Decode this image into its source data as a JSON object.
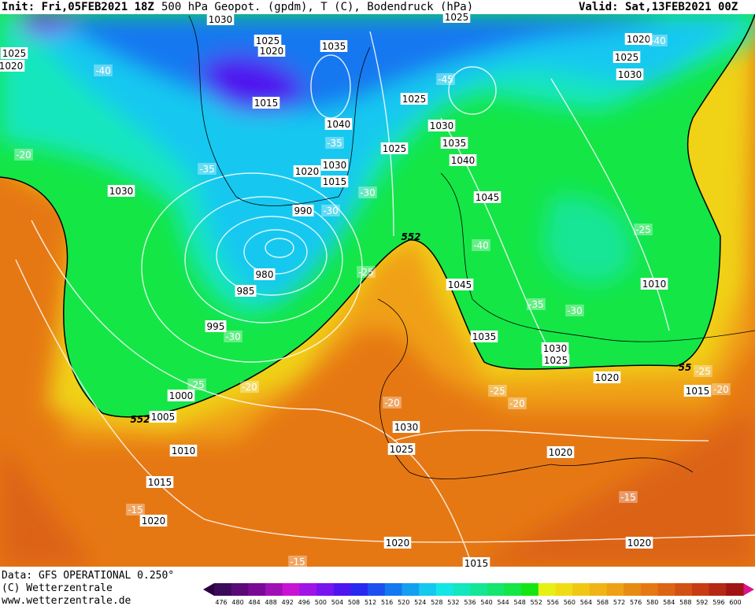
{
  "header": {
    "init": "Init: Fri,05FEB2021 18Z",
    "fields": "500 hPa Geopot. (gpdm), T (C), Bodendruck (hPa)",
    "valid": "Valid: Sat,13FEB2021 00Z"
  },
  "footer": {
    "data": "Data: GFS OPERATIONAL 0.250°",
    "copyright": "(C) Wetterzentrale",
    "url": "www.wetterzentrale.de"
  },
  "colorbar": {
    "ticks": [
      476,
      480,
      484,
      488,
      492,
      496,
      500,
      504,
      508,
      512,
      516,
      520,
      524,
      528,
      532,
      536,
      540,
      544,
      548,
      552,
      556,
      560,
      564,
      568,
      572,
      576,
      580,
      584,
      588,
      592,
      596,
      600
    ],
    "colors": [
      "#3c0a5a",
      "#5a0a78",
      "#7a0a96",
      "#a010b4",
      "#c814d2",
      "#a014e6",
      "#7814f0",
      "#5014f0",
      "#2828f0",
      "#1e50f0",
      "#1478f0",
      "#14a0f0",
      "#14c8f0",
      "#14e6e6",
      "#14e6be",
      "#14e696",
      "#14e66e",
      "#14e646",
      "#14e614",
      "#e6f014",
      "#f0dc14",
      "#f0c814",
      "#f0b414",
      "#f0a014",
      "#e68c14",
      "#e67814",
      "#dc6414",
      "#d25014",
      "#c83c14",
      "#b42814",
      "#a01414"
    ],
    "under_color": "#2a0040",
    "over_color": "#dc148c"
  },
  "pressure_labels": [
    1030,
    1025,
    1020,
    1035,
    1015,
    1040,
    1030,
    1020,
    1015,
    990,
    980,
    985,
    995,
    1000,
    1005,
    1010,
    1015,
    1020,
    1020,
    1015,
    1020,
    1020,
    1025,
    1030,
    1020,
    1015,
    1025,
    1030,
    1035,
    1045,
    1045,
    1040,
    1035,
    1030,
    1025,
    1025,
    1025,
    1020,
    1025,
    1030,
    1010,
    1030,
    1025,
    1020
  ],
  "temperature_labels": [
    -35,
    -30,
    -30,
    -30,
    -25,
    -20,
    -15,
    -15,
    -15,
    -20,
    -25,
    -20,
    -20,
    -25,
    -30,
    -35,
    -40,
    -25,
    -45,
    -40,
    -25,
    -20,
    -35,
    -40
  ],
  "height_labels": [
    552,
    552,
    55
  ]
}
